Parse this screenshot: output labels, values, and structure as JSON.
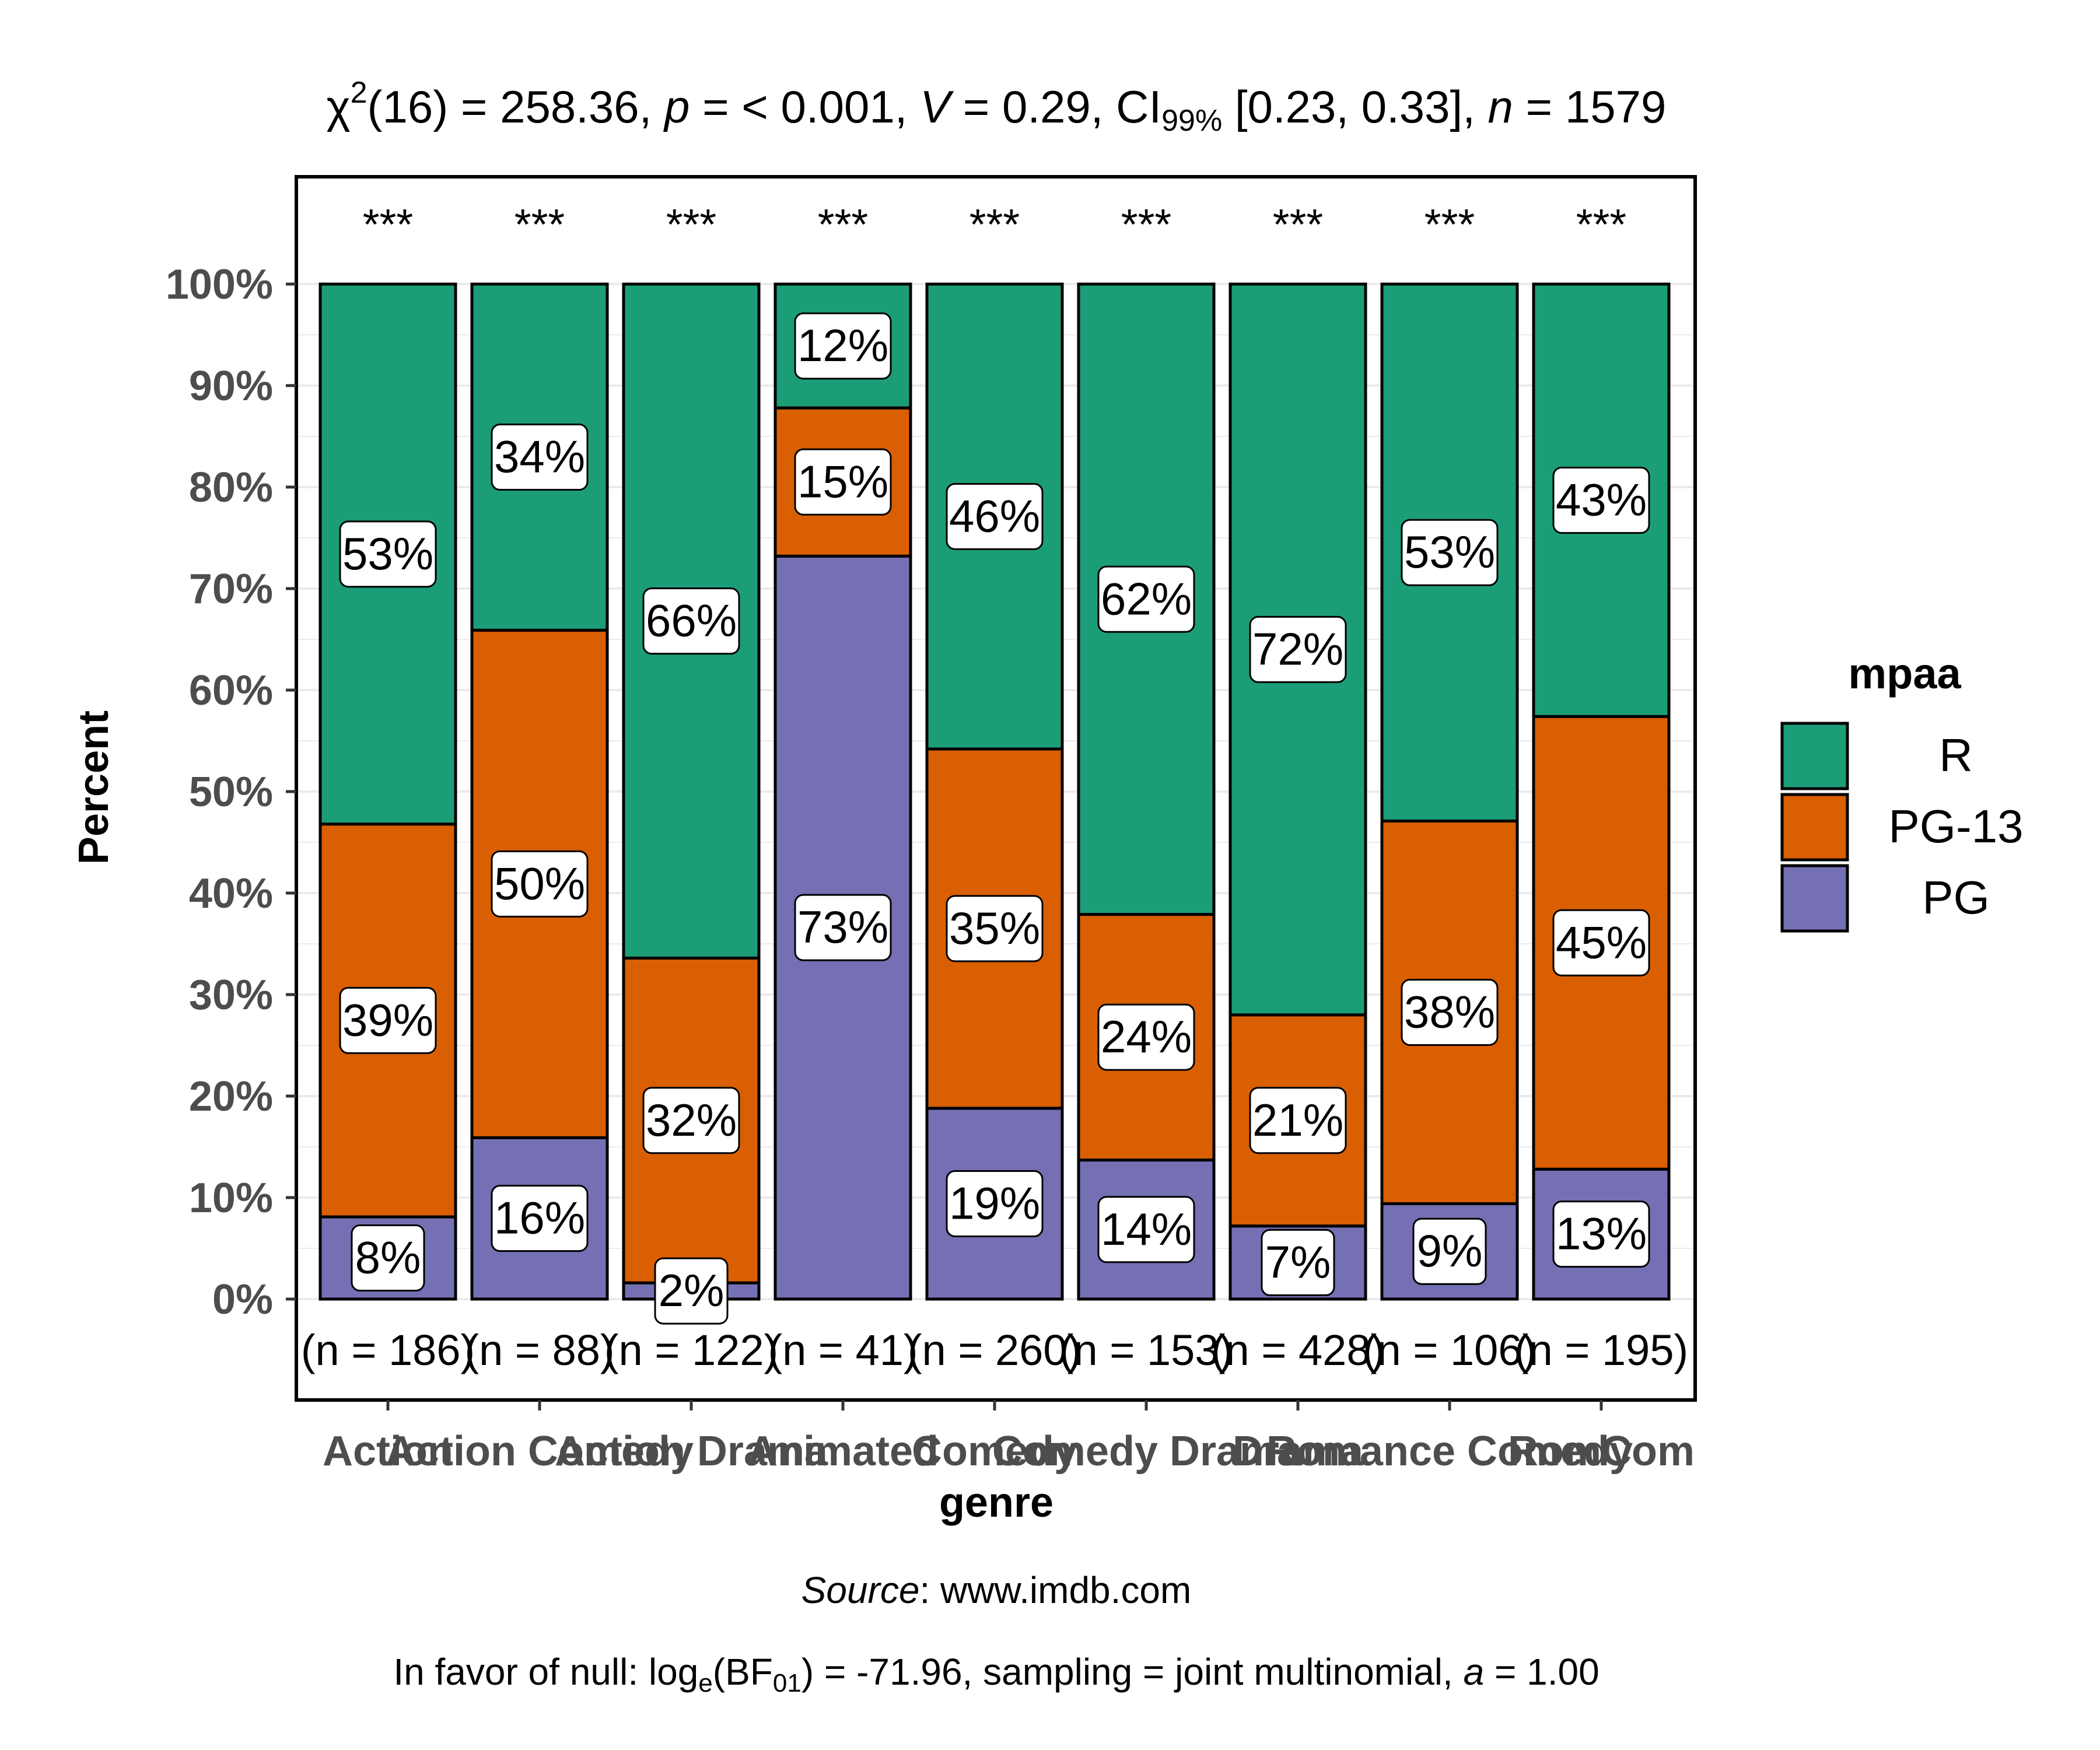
{
  "chart_data": {
    "type": "bar",
    "stacked": true,
    "percent": true,
    "title": {
      "chi": "χ",
      "chi_sup": "2",
      "df": "(16) = 258.36, ",
      "p_label": "p",
      "p_rest": " = < 0.001, ",
      "v_label": "V",
      "v_rest": " = 0.29, CI",
      "ci_sub": "99%",
      "ci_rest": " [0.23, 0.33], ",
      "n_label": "n",
      "n_rest": " = 1579"
    },
    "xlabel": "genre",
    "ylabel": "Percent",
    "ylim": [
      0,
      100
    ],
    "yticks": [
      "0%",
      "10%",
      "20%",
      "30%",
      "40%",
      "50%",
      "60%",
      "70%",
      "80%",
      "90%",
      "100%"
    ],
    "categories": [
      "Action",
      "Action Comedy",
      "Action Drama",
      "Animated",
      "Comedy",
      "Comedy Drama",
      "Drama",
      "Romance Comedy",
      "RomCom"
    ],
    "category_labels": [
      "Action",
      "Action Comedy",
      "Action Drama",
      "Animated",
      "Comedy",
      "Comedy Drama",
      "Drama",
      "Romance Comedy",
      "RomCom"
    ],
    "n_labels": [
      "(n = 186)",
      "(n = 88)",
      "(n = 122)",
      "(n = 41)",
      "(n = 260)",
      "(n = 153)",
      "(n = 428)",
      "(n = 106)",
      "(n = 195)"
    ],
    "significance": [
      "***",
      "***",
      "***",
      "***",
      "***",
      "***",
      "***",
      "***",
      "***"
    ],
    "legend": {
      "title": "mpaa",
      "entries": [
        "R",
        "PG-13",
        "PG"
      ],
      "placement": "right"
    },
    "series": [
      {
        "name": "PG",
        "color": "#7570B3",
        "values": [
          8.1,
          15.9,
          1.6,
          73.2,
          18.8,
          13.7,
          7.2,
          9.4,
          12.8
        ],
        "labels": [
          "8%",
          "16%",
          "2%",
          "73%",
          "19%",
          "14%",
          "7%",
          "9%",
          "13%"
        ]
      },
      {
        "name": "PG-13",
        "color": "#D95F02",
        "values": [
          38.7,
          50.0,
          32.0,
          14.6,
          35.4,
          24.2,
          20.8,
          37.7,
          44.6
        ],
        "labels": [
          "39%",
          "50%",
          "32%",
          "15%",
          "35%",
          "24%",
          "21%",
          "38%",
          "45%"
        ]
      },
      {
        "name": "R",
        "color": "#1B9E77",
        "values": [
          53.2,
          34.1,
          66.4,
          12.2,
          45.8,
          62.1,
          72.0,
          52.9,
          42.6
        ],
        "labels": [
          "53%",
          "34%",
          "66%",
          "12%",
          "46%",
          "62%",
          "72%",
          "53%",
          "43%"
        ]
      }
    ],
    "caption": {
      "source_label": "Source",
      "source_rest": ": www.imdb.com",
      "bf_pre": "In favor of null: log",
      "bf_sub_e": "e",
      "bf_mid": "(BF",
      "bf_sub_01": "01",
      "bf_rest": ") = -71.96, sampling = joint multinomial, ",
      "a_label": "a",
      "a_rest": " = 1.00"
    }
  }
}
